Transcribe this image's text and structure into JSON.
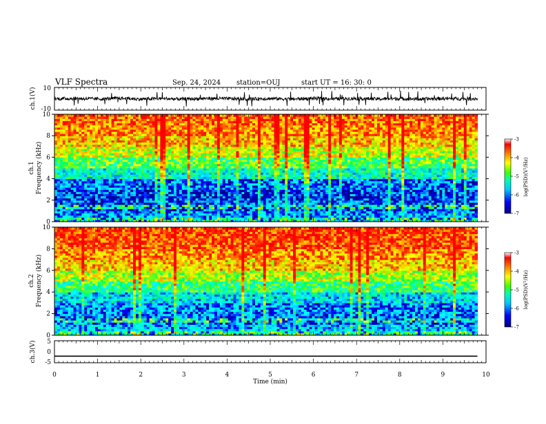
{
  "header": {
    "title": "VLF Spectra",
    "date": "Sep. 24, 2024",
    "station": "station=OUJ",
    "start": "start UT =  16: 30: 0"
  },
  "chart_data": [
    {
      "type": "line",
      "panel": "ch1-waveform",
      "ylabel": "ch.1(V)",
      "ylim": [
        -10,
        10
      ],
      "yticks": [
        "10",
        "-10"
      ],
      "x": [
        0,
        0.5,
        1,
        1.5,
        2,
        2.5,
        3,
        3.5,
        4,
        4.5,
        5,
        5.5,
        6,
        6.5,
        7,
        7.5,
        8,
        8.5,
        9,
        9.5,
        9.8
      ],
      "values": [
        0,
        0.3,
        -0.2,
        0.4,
        -0.3,
        0.2,
        -0.4,
        0.3,
        0.1,
        -0.2,
        0.2,
        -0.3,
        0.4,
        -0.1,
        0.3,
        -0.2,
        0.1,
        -0.3,
        0.2,
        0,
        0.1
      ],
      "envelope_halfwidth_V": 3
    },
    {
      "type": "heatmap",
      "panel": "ch1-spectrogram",
      "ylabel": "ch.1\nFrequency (kHz)",
      "ylim": [
        0,
        10
      ],
      "yticks": [
        "0",
        "2",
        "4",
        "6",
        "8",
        "10"
      ],
      "colorbar": {
        "label": "log(PSD)(V²/Hz)",
        "range": [
          -7,
          -3
        ],
        "ticks": [
          "-3",
          "-4",
          "-5",
          "-6",
          "-7"
        ]
      },
      "frequency_bands_kHz": [
        0,
        1,
        2,
        3,
        4,
        5,
        6,
        7,
        8,
        9,
        10
      ],
      "mean_log_psd_by_band": [
        -6.2,
        -6.4,
        -6.5,
        -6.3,
        -5.6,
        -5.0,
        -4.5,
        -4.1,
        -3.8,
        -3.6
      ]
    },
    {
      "type": "heatmap",
      "panel": "ch2-spectrogram",
      "ylabel": "ch.2\nFrequency (kHz)",
      "ylim": [
        0,
        10
      ],
      "yticks": [
        "0",
        "2",
        "4",
        "6",
        "8",
        "10"
      ],
      "colorbar": {
        "label": "log(PSD)(V²/Hz)",
        "range": [
          -7,
          -3
        ],
        "ticks": [
          "-3",
          "-4",
          "-5",
          "-6",
          "-7"
        ]
      },
      "frequency_bands_kHz": [
        0,
        1,
        2,
        3,
        4,
        5,
        6,
        7,
        8,
        9,
        10
      ],
      "mean_log_psd_by_band": [
        -6.0,
        -6.3,
        -6.2,
        -5.8,
        -5.2,
        -4.6,
        -4.1,
        -3.8,
        -3.5,
        -3.4
      ]
    },
    {
      "type": "line",
      "panel": "ch3-waveform",
      "ylabel": "ch.3(V)",
      "ylim": [
        -5,
        5
      ],
      "yticks": [
        "5",
        "0",
        "-5"
      ],
      "x": [
        0,
        9.8
      ],
      "values": [
        -2,
        -2
      ]
    }
  ],
  "x_axis": {
    "label": "Time (min)",
    "xlim": [
      0,
      10
    ],
    "ticks": [
      "0",
      "1",
      "2",
      "3",
      "4",
      "5",
      "6",
      "7",
      "8",
      "9",
      "10"
    ]
  },
  "colors": {
    "waveform": "#000000",
    "colormap": [
      "#00008b",
      "#0000ff",
      "#00bfff",
      "#00ffff",
      "#00ff66",
      "#80ff00",
      "#ffff00",
      "#ffa500",
      "#ff3000",
      "#ff0000"
    ]
  }
}
